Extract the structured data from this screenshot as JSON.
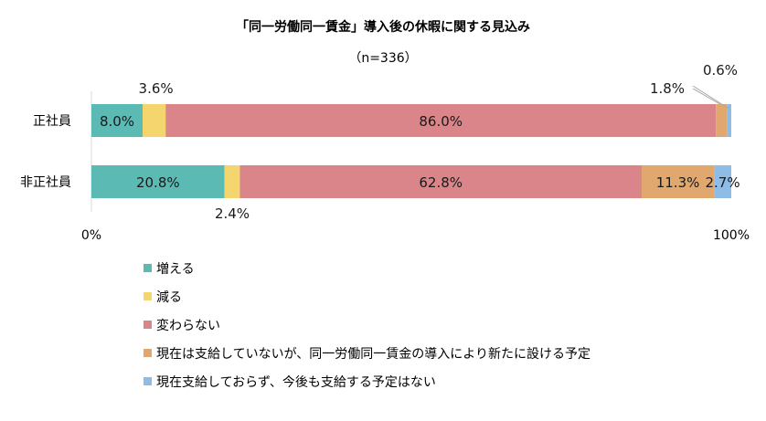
{
  "chart_data": {
    "type": "bar",
    "orientation": "horizontal",
    "stacked": true,
    "title": "「同一労働同一賃金」導入後の休暇に関する見込み",
    "subtitle": "（n=336）",
    "categories": [
      "正社員",
      "非正社員"
    ],
    "series": [
      {
        "name": "増える",
        "color": "#5cbab5",
        "values": [
          8.0,
          20.8
        ]
      },
      {
        "name": "減る",
        "color": "#f5d56e",
        "values": [
          3.6,
          2.4
        ]
      },
      {
        "name": "変わらない",
        "color": "#d98589",
        "values": [
          86.0,
          62.8
        ]
      },
      {
        "name": "現在は支給していないが、同一労働同一賃金の導入により新たに設ける予定",
        "color": "#e0a76f",
        "values": [
          1.8,
          11.3
        ]
      },
      {
        "name": "現在支給しておらず、今後も支給する予定はない",
        "color": "#8dbde6",
        "values": [
          0.6,
          2.7
        ]
      }
    ],
    "data_labels": [
      [
        "8.0%",
        "3.6%",
        "86.0%",
        "1.8%",
        "0.6%"
      ],
      [
        "20.8%",
        "2.4%",
        "62.8%",
        "11.3%",
        "2.7%"
      ]
    ],
    "xlim": [
      0,
      100
    ],
    "x_ticks": [
      "0%",
      "100%"
    ],
    "grid": false,
    "legend_position": "bottom-left"
  }
}
